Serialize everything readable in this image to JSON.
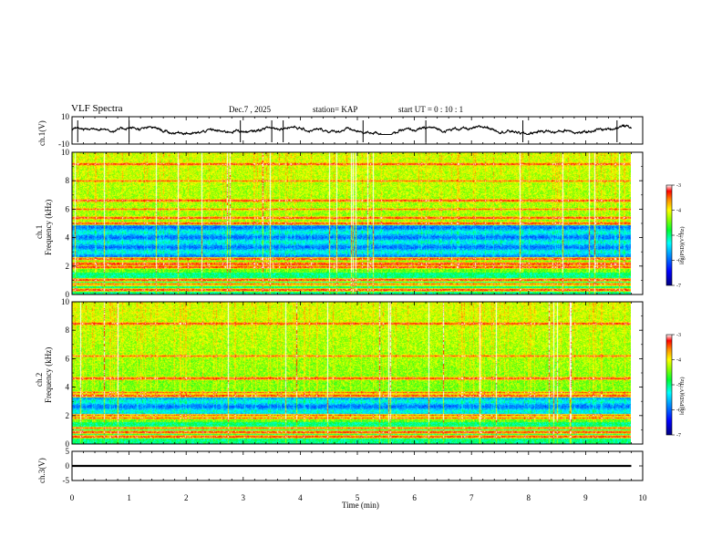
{
  "header": {
    "title": "VLF Spectra",
    "date": "Dec.7 , 2025",
    "station": "station= KAP",
    "start_ut": "start  UT =   0  : 10 : 1"
  },
  "chart_data": [
    {
      "type": "line",
      "panel": "ch1 waveform",
      "ylabel": "ch.1(V)",
      "ylim": [
        -10,
        10
      ],
      "ytick_labels": [
        "10",
        "-10"
      ],
      "xlim": [
        0,
        10
      ],
      "x_extent_min": 9.8,
      "y_range_approx": [
        -3,
        5
      ]
    },
    {
      "type": "heatmap",
      "panel": "ch1 spectrogram",
      "ylabel": "ch.1\nFrequency (kHz)",
      "ylabel_line1": "ch.1",
      "ylabel_line2": "Frequency (kHz)",
      "ylim": [
        0,
        10
      ],
      "ytick_labels": [
        "0",
        "2",
        "4",
        "6",
        "8",
        "10"
      ],
      "xlim": [
        0,
        9.8
      ],
      "bands_khz": {
        "blue_low_power": [
          [
            2.5,
            5.0
          ]
        ],
        "red_horizontal_lines": [
          0.3,
          0.7,
          1.0,
          1.9,
          2.1,
          2.2,
          2.5,
          5.0,
          5.4,
          6.0,
          6.6,
          8.0,
          9.2
        ]
      },
      "colorbar": {
        "label": "log(PSD)(V²/Hz)",
        "range": [
          -7,
          -3
        ],
        "tick_labels": [
          "-3",
          "-4",
          "-5",
          "-6",
          "-7"
        ]
      }
    },
    {
      "type": "heatmap",
      "panel": "ch2 spectrogram",
      "ylabel": "ch.2\nFrequency (kHz)",
      "ylabel_line1": "ch.2",
      "ylabel_line2": "Frequency (kHz)",
      "ylim": [
        0,
        10
      ],
      "ytick_labels": [
        "0",
        "2",
        "4",
        "6",
        "8",
        "10"
      ],
      "xlim": [
        0,
        9.8
      ],
      "bands_khz": {
        "blue_low_power": [
          [
            1.8,
            3.4
          ]
        ],
        "red_horizontal_lines": [
          0.5,
          0.8,
          1.1,
          1.8,
          2.0,
          3.4,
          3.6,
          4.6,
          6.2,
          8.5
        ]
      },
      "colorbar": {
        "label": "log(PSD)(V²/Hz)",
        "range": [
          -7,
          -3
        ],
        "tick_labels": [
          "-3",
          "-4",
          "-5",
          "-6",
          "-7"
        ]
      }
    },
    {
      "type": "line",
      "panel": "ch3 waveform",
      "ylabel": "ch.3(V)",
      "ylim": [
        -5,
        5
      ],
      "ytick_labels": [
        "5",
        "0",
        "-5"
      ],
      "xlim": [
        0,
        10
      ],
      "x_extent_min": 9.8,
      "band": [
        -0.35,
        0.35
      ]
    }
  ],
  "xaxis": {
    "label": "Time  (min)",
    "range": [
      0,
      10
    ],
    "tick_labels": [
      "0",
      "1",
      "2",
      "3",
      "4",
      "5",
      "6",
      "7",
      "8",
      "9",
      "10"
    ]
  },
  "colors": {
    "ink": "#000000",
    "colormap": [
      "#00007f",
      "#0000ff",
      "#0090ff",
      "#00ffff",
      "#00ff30",
      "#90ff00",
      "#ffff00",
      "#ff9000",
      "#ff0000",
      "#ffffff"
    ]
  }
}
